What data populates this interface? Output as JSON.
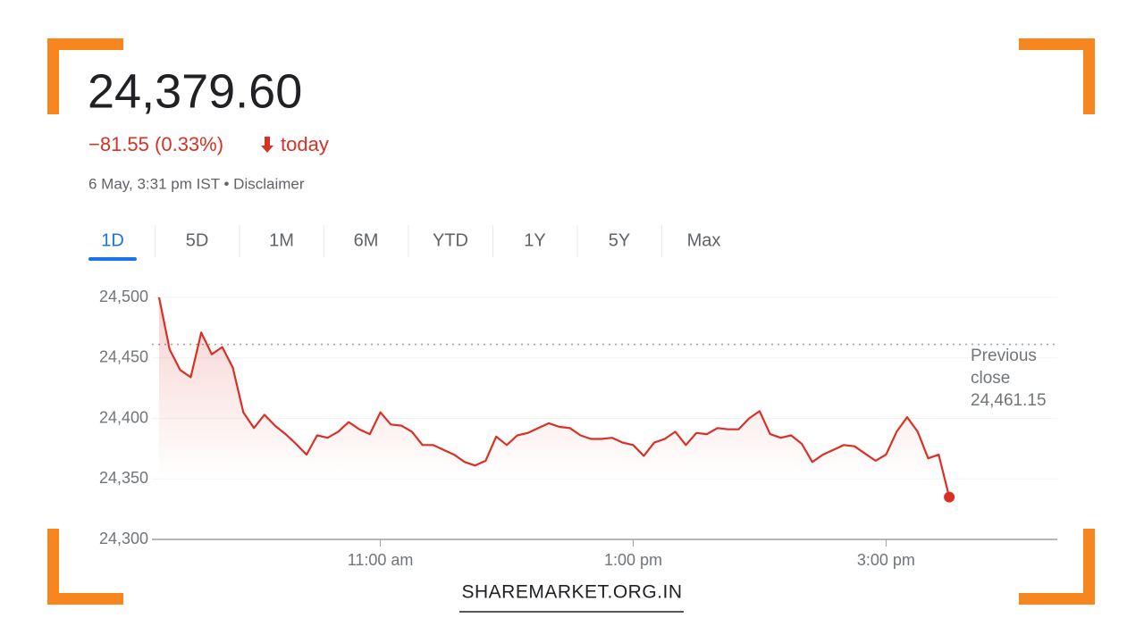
{
  "quote": {
    "price": "24,379.60",
    "change": "−81.55 (0.33%)",
    "change_suffix": "today",
    "timestamp": "6 May, 3:31 pm IST • Disclaimer"
  },
  "tabs": {
    "items": [
      "1D",
      "5D",
      "1M",
      "6M",
      "YTD",
      "1Y",
      "5Y",
      "Max"
    ],
    "active": 0
  },
  "chart_data": {
    "type": "line",
    "x": [
      555,
      560,
      565,
      570,
      575,
      580,
      585,
      590,
      595,
      600,
      605,
      610,
      615,
      620,
      625,
      630,
      635,
      640,
      645,
      650,
      655,
      660,
      665,
      670,
      675,
      680,
      685,
      690,
      695,
      700,
      705,
      710,
      715,
      720,
      725,
      730,
      735,
      740,
      745,
      750,
      755,
      760,
      765,
      770,
      775,
      780,
      785,
      790,
      795,
      800,
      805,
      810,
      815,
      820,
      825,
      830,
      835,
      840,
      845,
      850,
      855,
      860,
      865,
      870,
      875,
      880,
      885,
      890,
      895,
      900,
      905,
      910,
      915,
      920,
      925,
      930
    ],
    "series": [
      {
        "name": "NIFTY 50",
        "color": "#d93025",
        "values": [
          24500,
          24457,
          24440,
          24434,
          24471,
          24453,
          24459,
          24442,
          24405,
          24392,
          24403,
          24394,
          24387,
          24379,
          24370,
          24386,
          24384,
          24389,
          24397,
          24391,
          24387,
          24405,
          24395,
          24394,
          24389,
          24378,
          24378,
          24374,
          24370,
          24364,
          24361,
          24365,
          24385,
          24378,
          24386,
          24388,
          24392,
          24396,
          24393,
          24392,
          24386,
          24383,
          24383,
          24384,
          24380,
          24378,
          24369,
          24380,
          24383,
          24389,
          24378,
          24388,
          24387,
          24392,
          24391,
          24391,
          24400,
          24406,
          24387,
          24384,
          24386,
          24379,
          24364,
          24370,
          24374,
          24378,
          24377,
          24371,
          24365,
          24370,
          24389,
          24401,
          24389,
          24367,
          24370,
          24335
        ]
      }
    ],
    "xlim": [
      555,
      980
    ],
    "xticks": [
      {
        "value": 660,
        "label": "11:00 am"
      },
      {
        "value": 780,
        "label": "1:00 pm"
      },
      {
        "value": 900,
        "label": "3:00 pm"
      }
    ],
    "ylim": [
      24300,
      24500
    ],
    "yticks": [
      {
        "value": 24300,
        "label": "24,300"
      },
      {
        "value": 24350,
        "label": "24,350"
      },
      {
        "value": 24400,
        "label": "24,400"
      },
      {
        "value": 24450,
        "label": "24,450"
      },
      {
        "value": 24500,
        "label": "24,500"
      }
    ],
    "grid": true,
    "previous_close": {
      "label": "Previous close",
      "value": 24461.15,
      "value_label": "24,461.15"
    }
  },
  "footer": "SHAREMARKET.ORG.IN"
}
